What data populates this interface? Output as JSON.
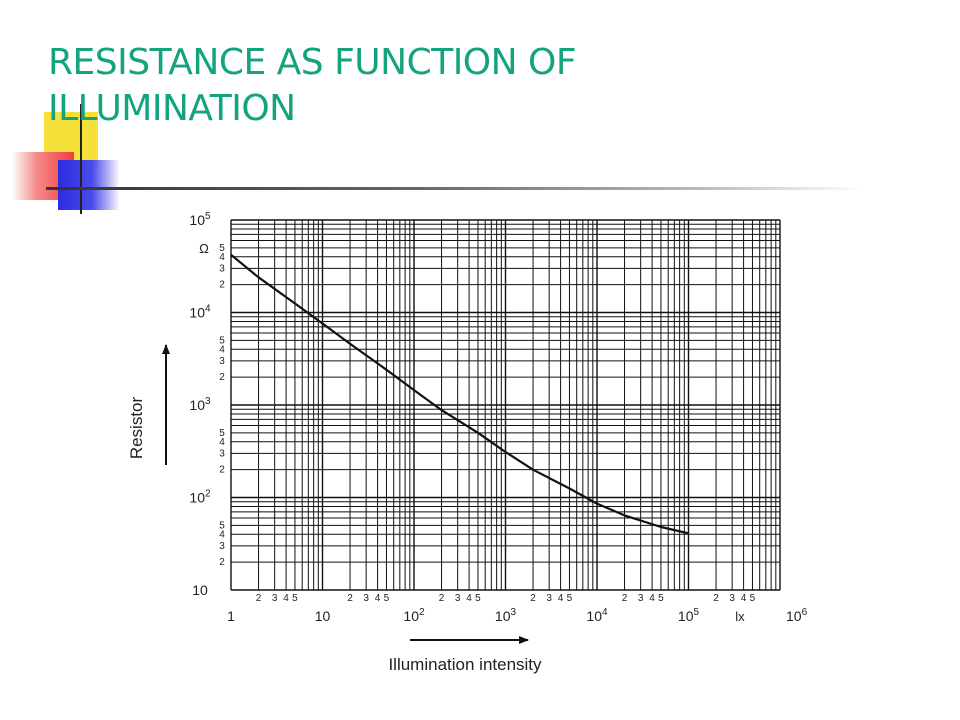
{
  "slide": {
    "title": "RESISTANCE AS FUNCTION OF ILLUMINATION"
  },
  "chart_data": {
    "type": "line",
    "title": "",
    "xlabel": "Illumination intensity",
    "ylabel": "Resistor",
    "x_unit": "lx",
    "y_unit": "Ω",
    "x_scale": "log",
    "y_scale": "log",
    "xlim": [
      1,
      1000000
    ],
    "ylim": [
      10,
      100000
    ],
    "x_decade_labels": [
      {
        "value": 1,
        "base": "1",
        "exp": ""
      },
      {
        "value": 10,
        "base": "10",
        "exp": ""
      },
      {
        "value": 100,
        "base": "10",
        "exp": "2"
      },
      {
        "value": 1000,
        "base": "10",
        "exp": "3"
      },
      {
        "value": 10000,
        "base": "10",
        "exp": "4"
      },
      {
        "value": 100000,
        "base": "10",
        "exp": "5"
      },
      {
        "value": 1000000,
        "base": "10",
        "exp": "6"
      }
    ],
    "y_decade_labels": [
      {
        "value": 10,
        "base": "10",
        "exp": ""
      },
      {
        "value": 100,
        "base": "10",
        "exp": "2"
      },
      {
        "value": 1000,
        "base": "10",
        "exp": "3"
      },
      {
        "value": 10000,
        "base": "10",
        "exp": "4"
      },
      {
        "value": 100000,
        "base": "10",
        "exp": "5"
      }
    ],
    "minor_tick_labels": [
      "2",
      "3",
      "4",
      "5"
    ],
    "grid": true,
    "series": [
      {
        "x": [
          1,
          2,
          5,
          10,
          20,
          50,
          100,
          200,
          500,
          1000,
          2000,
          5000,
          10000,
          20000,
          50000,
          100000
        ],
        "y": [
          42000,
          24000,
          12500,
          7600,
          4600,
          2400,
          1450,
          880,
          500,
          310,
          200,
          125,
          86,
          64,
          48,
          41
        ]
      }
    ]
  }
}
